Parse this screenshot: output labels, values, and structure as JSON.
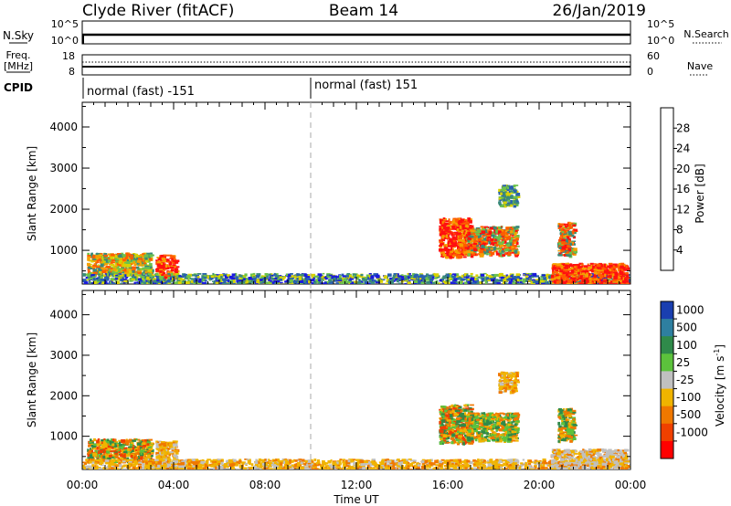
{
  "header": {
    "station": "Clyde River (fitACF)",
    "beam": "Beam 14",
    "date": "26/Jan/2019"
  },
  "noise_panel": {
    "left_label": "N.Sky",
    "right_label": "N.Search",
    "left_ticks": [
      "10^5",
      "10^0"
    ],
    "right_ticks": [
      "10^5",
      "10^0"
    ]
  },
  "freq_panel": {
    "left_label_line1": "Freq.",
    "left_label_line2": "[MHz]",
    "right_label": "Nave",
    "left_ticks": [
      "18",
      "8"
    ],
    "right_ticks": [
      "60",
      "0"
    ]
  },
  "cpid": {
    "label": "CPID",
    "segments": [
      {
        "text": "normal (fast) -151",
        "start_hour": 0
      },
      {
        "text": "normal (fast) 151",
        "start_hour": 10
      }
    ]
  },
  "x_axis": {
    "label": "Time UT",
    "ticks": [
      "00:00",
      "04:00",
      "08:00",
      "12:00",
      "16:00",
      "20:00",
      "00:00"
    ],
    "range_hours": [
      0,
      24
    ]
  },
  "y_axis": {
    "label": "Slant Range [km]",
    "ticks": [
      "1000",
      "2000",
      "3000",
      "4000"
    ],
    "range_km": [
      180,
      4600
    ]
  },
  "power_colorbar": {
    "label": "Power [dB]",
    "ticks": [
      "4",
      "8",
      "12",
      "16",
      "20",
      "24",
      "28"
    ],
    "colors": [
      "#1a1adc",
      "#2860b0",
      "#3a8a7a",
      "#6cc24a",
      "#d8d200",
      "#f5a000",
      "#ff5c00",
      "#ff1010"
    ]
  },
  "velocity_colorbar": {
    "label": "Velocity [m s-1]",
    "label_main": "Velocity [m s",
    "label_exp": "-1",
    "label_close": "]",
    "ticks": [
      "1000",
      "500",
      "100",
      "25",
      "-25",
      "-100",
      "-500",
      "-1000"
    ],
    "colors": [
      "#1a3fb0",
      "#2e7fa0",
      "#2f8a4a",
      "#5cc23c",
      "#c0c0c0",
      "#f0b400",
      "#f07800",
      "#f04000",
      "#ff0000"
    ]
  },
  "chart_data": {
    "type": "heatmap",
    "panels": [
      "power",
      "velocity"
    ],
    "x_unit": "hours UT",
    "y_unit": "km",
    "scatter_regions": [
      {
        "t": [
          0.2,
          3.0
        ],
        "r": [
          400,
          950
        ],
        "power": "green-orange",
        "velocity": "orange-green"
      },
      {
        "t": [
          3.2,
          4.1
        ],
        "r": [
          350,
          900
        ],
        "power": "red-orange",
        "velocity": "orange"
      },
      {
        "t": [
          0,
          24
        ],
        "r": [
          200,
          450
        ],
        "power": "blue-green",
        "velocity": "orange"
      },
      {
        "t": [
          15.6,
          17.0
        ],
        "r": [
          850,
          1800
        ],
        "power": "red",
        "velocity": "orange-green"
      },
      {
        "t": [
          16.8,
          19.0
        ],
        "r": [
          900,
          1600
        ],
        "power": "red-green",
        "velocity": "green-orange"
      },
      {
        "t": [
          18.2,
          19.0
        ],
        "r": [
          2100,
          2600
        ],
        "power": "green",
        "velocity": "orange"
      },
      {
        "t": [
          20.8,
          21.5
        ],
        "r": [
          900,
          1700
        ],
        "power": "red-green",
        "velocity": "green-orange"
      },
      {
        "t": [
          20.5,
          23.8
        ],
        "r": [
          200,
          700
        ],
        "power": "red-orange",
        "velocity": "orange-grey"
      }
    ]
  }
}
